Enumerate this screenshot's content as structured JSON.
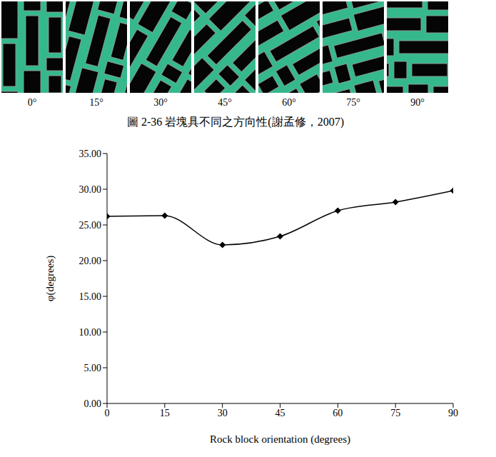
{
  "figure": {
    "panels": [
      {
        "orientation": 0,
        "label": "0°"
      },
      {
        "orientation": 15,
        "label": "15°"
      },
      {
        "orientation": 30,
        "label": "30°"
      },
      {
        "orientation": 45,
        "label": "45°"
      },
      {
        "orientation": 60,
        "label": "60°"
      },
      {
        "orientation": 75,
        "label": "75°"
      },
      {
        "orientation": 90,
        "label": "90°"
      }
    ],
    "caption": "圖 2-36 岩塊具不同之方向性(謝孟修，2007)"
  },
  "chart_data": {
    "type": "line",
    "x": [
      0,
      15,
      30,
      45,
      60,
      75,
      90
    ],
    "values": [
      26.2,
      26.3,
      22.2,
      23.4,
      27.0,
      28.2,
      29.8
    ],
    "color": "#000000",
    "marker": "diamond",
    "line_style": "smooth",
    "xlabel": "Rock block orientation (degrees)",
    "ylabel": "φ(degrees)",
    "xlim": [
      0,
      90
    ],
    "xticks": [
      0,
      15,
      30,
      45,
      60,
      75,
      90
    ],
    "ylim": [
      0,
      35
    ],
    "yticks": [
      {
        "value": 0,
        "label": "0.00"
      },
      {
        "value": 5,
        "label": "5.00"
      },
      {
        "value": 10,
        "label": "10.00"
      },
      {
        "value": 15,
        "label": "15.00"
      },
      {
        "value": 20,
        "label": "20.00"
      },
      {
        "value": 25,
        "label": "25.00"
      },
      {
        "value": 30,
        "label": "30.00"
      },
      {
        "value": 35,
        "label": "35.00"
      }
    ],
    "grid": false
  }
}
